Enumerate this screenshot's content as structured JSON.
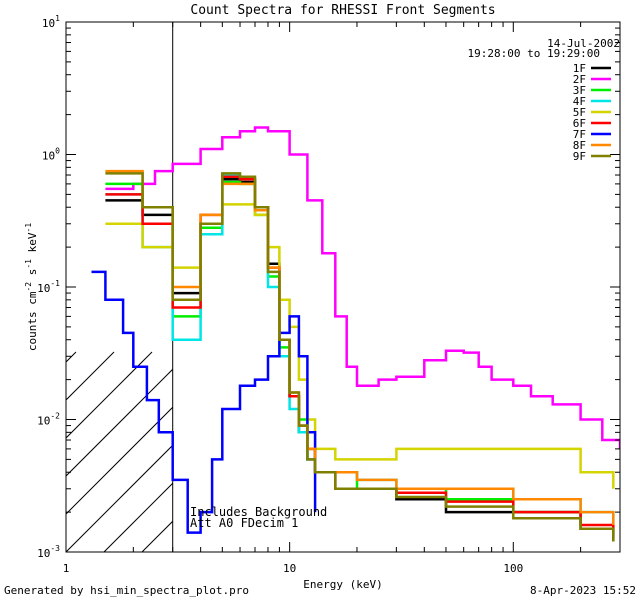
{
  "chart_data": {
    "type": "line",
    "title": "Count Spectra for RHESSI Front Segments",
    "xlabel": "Energy (keV)",
    "ylabel_parts": [
      "counts cm",
      "-2",
      " s",
      "-1",
      " keV",
      "-1"
    ],
    "xscale": "log",
    "yscale": "log",
    "xlim": [
      1,
      300
    ],
    "ylim": [
      0.001,
      10
    ],
    "x_tick_labels": [
      {
        "value": 1,
        "label": "1"
      },
      {
        "value": 10,
        "label": "10"
      },
      {
        "value": 100,
        "label": "100"
      }
    ],
    "y_tick_labels": [
      {
        "value": 0.001,
        "base": "10",
        "exp": "-3"
      },
      {
        "value": 0.01,
        "base": "10",
        "exp": "-2"
      },
      {
        "value": 0.1,
        "base": "10",
        "exp": "-1"
      },
      {
        "value": 1,
        "base": "10",
        "exp": "0"
      },
      {
        "value": 10,
        "base": "10",
        "exp": "1"
      }
    ],
    "hatched_region": {
      "x_from": 1,
      "x_to": 3
    },
    "date": "14-Jul-2002",
    "time_range": "19:28:00 to 19:29:00",
    "legend_location": "top-right",
    "annotations": [
      "Includes Background",
      "Att A0   FDecim 1"
    ],
    "footer_left": "Generated by hsi_min_spectra_plot.pro",
    "footer_right": "8-Apr-2023 15:52",
    "series": [
      {
        "name": "1F",
        "color": "#000000",
        "x": [
          1.5,
          2.2,
          3,
          4,
          5,
          6,
          7,
          8,
          9,
          10,
          11,
          12,
          13,
          16,
          20,
          30,
          50,
          100,
          200,
          280
        ],
        "y": [
          0.45,
          0.35,
          0.09,
          0.3,
          0.65,
          0.62,
          0.4,
          0.15,
          0.04,
          0.015,
          0.008,
          0.005,
          0.004,
          0.003,
          0.003,
          0.0025,
          0.002,
          0.002,
          0.0015,
          0.0012
        ]
      },
      {
        "name": "2F",
        "color": "#ff00ff",
        "x": [
          1.5,
          2,
          2.5,
          3,
          4,
          5,
          6,
          7,
          8,
          10,
          12,
          14,
          16,
          18,
          20,
          25,
          30,
          40,
          50,
          60,
          70,
          80,
          100,
          120,
          150,
          200,
          250,
          300
        ],
        "y": [
          0.55,
          0.6,
          0.75,
          0.85,
          1.1,
          1.35,
          1.5,
          1.6,
          1.5,
          1.0,
          0.45,
          0.18,
          0.06,
          0.025,
          0.018,
          0.02,
          0.021,
          0.028,
          0.033,
          0.032,
          0.025,
          0.02,
          0.018,
          0.015,
          0.013,
          0.01,
          0.007,
          0.006
        ]
      },
      {
        "name": "3F",
        "color": "#00ee00",
        "x": [
          1.5,
          2.2,
          3,
          4,
          5,
          6,
          7,
          8,
          9,
          10,
          11,
          12,
          13,
          16,
          20,
          30,
          50,
          100,
          200,
          280
        ],
        "y": [
          0.6,
          0.4,
          0.06,
          0.28,
          0.62,
          0.6,
          0.35,
          0.12,
          0.035,
          0.015,
          0.01,
          0.006,
          0.004,
          0.004,
          0.003,
          0.003,
          0.0025,
          0.002,
          0.0015,
          0.0013
        ]
      },
      {
        "name": "4F",
        "color": "#00e5e5",
        "x": [
          1.5,
          2.2,
          3,
          4,
          5,
          6,
          7,
          8,
          9,
          10,
          11,
          12,
          13,
          16,
          20,
          30,
          50,
          100,
          200,
          280
        ],
        "y": [
          0.5,
          0.2,
          0.04,
          0.25,
          0.7,
          0.65,
          0.38,
          0.1,
          0.03,
          0.012,
          0.008,
          0.005,
          0.004,
          0.004,
          0.0035,
          0.003,
          0.003,
          0.0025,
          0.002,
          0.0015
        ]
      },
      {
        "name": "5F",
        "color": "#d4d400",
        "x": [
          1.5,
          2.2,
          3,
          4,
          5,
          6,
          7,
          8,
          9,
          10,
          11,
          12,
          13,
          16,
          20,
          30,
          50,
          100,
          200,
          280
        ],
        "y": [
          0.3,
          0.2,
          0.14,
          0.3,
          0.42,
          0.42,
          0.35,
          0.2,
          0.08,
          0.05,
          0.02,
          0.01,
          0.006,
          0.005,
          0.005,
          0.006,
          0.006,
          0.006,
          0.004,
          0.003
        ]
      },
      {
        "name": "6F",
        "color": "#ff0000",
        "x": [
          1.5,
          2.2,
          3,
          4,
          5,
          6,
          7,
          8,
          9,
          10,
          11,
          12,
          13,
          16,
          20,
          30,
          50,
          100,
          200,
          280
        ],
        "y": [
          0.5,
          0.3,
          0.07,
          0.35,
          0.68,
          0.65,
          0.4,
          0.14,
          0.04,
          0.015,
          0.009,
          0.006,
          0.004,
          0.003,
          0.003,
          0.0028,
          0.0024,
          0.002,
          0.0016,
          0.0013
        ]
      },
      {
        "name": "7F",
        "color": "#0000ff",
        "x": [
          1.3,
          1.5,
          1.8,
          2,
          2.3,
          2.6,
          3,
          3.5,
          4,
          4.5,
          5,
          6,
          7,
          8,
          9,
          10,
          11,
          12,
          13
        ],
        "y": [
          0.13,
          0.08,
          0.045,
          0.025,
          0.014,
          0.008,
          0.0035,
          0.0014,
          0.002,
          0.005,
          0.012,
          0.018,
          0.02,
          0.03,
          0.045,
          0.06,
          0.03,
          0.008,
          0.002
        ]
      },
      {
        "name": "8F",
        "color": "#ff8800",
        "x": [
          1.5,
          2.2,
          3,
          4,
          5,
          6,
          7,
          8,
          9,
          10,
          11,
          12,
          13,
          16,
          20,
          30,
          50,
          100,
          200,
          280
        ],
        "y": [
          0.75,
          0.4,
          0.1,
          0.35,
          0.6,
          0.6,
          0.38,
          0.14,
          0.04,
          0.016,
          0.009,
          0.006,
          0.004,
          0.004,
          0.0035,
          0.003,
          0.003,
          0.0025,
          0.002,
          0.0016
        ]
      },
      {
        "name": "9F",
        "color": "#808000",
        "x": [
          1.5,
          2.2,
          3,
          4,
          5,
          6,
          7,
          8,
          9,
          10,
          11,
          12,
          13,
          16,
          20,
          30,
          50,
          100,
          200,
          280
        ],
        "y": [
          0.72,
          0.4,
          0.08,
          0.3,
          0.72,
          0.68,
          0.4,
          0.13,
          0.04,
          0.016,
          0.009,
          0.005,
          0.004,
          0.003,
          0.003,
          0.0026,
          0.0022,
          0.0018,
          0.0015,
          0.0012
        ]
      }
    ]
  }
}
